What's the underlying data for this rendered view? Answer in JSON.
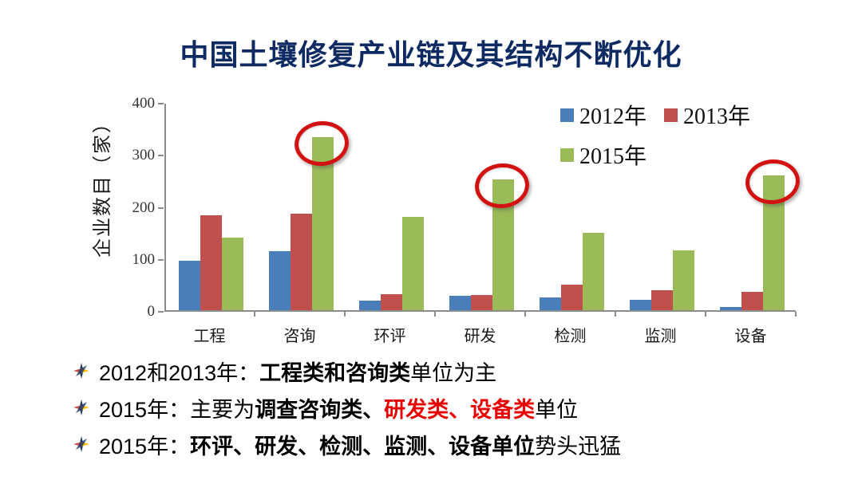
{
  "title": "中国土壤修复产业链及其结构不断优化",
  "colors": {
    "title": "#0e2a63",
    "axis": "#8c8c8c",
    "tick_label": "#333333",
    "highlight_red": "#e80000",
    "circle_red": "#d21210"
  },
  "chart_data": {
    "type": "bar",
    "title": "",
    "xlabel": "",
    "ylabel": "企业数目（家）",
    "ylim": [
      0,
      400
    ],
    "yticks": [
      0,
      100,
      200,
      300,
      400
    ],
    "grid": false,
    "legend_position": "top-right",
    "categories": [
      "工程",
      "咨询",
      "环评",
      "研发",
      "检测",
      "监测",
      "设备"
    ],
    "series": [
      {
        "name": "2012年",
        "color": "#4a7eba",
        "values": [
          95,
          114,
          18,
          28,
          24,
          20,
          6
        ]
      },
      {
        "name": "2013年",
        "color": "#c0504d",
        "values": [
          183,
          186,
          31,
          29,
          49,
          38,
          35
        ]
      },
      {
        "name": "2015年",
        "color": "#9bbb59",
        "values": [
          140,
          333,
          180,
          252,
          149,
          115,
          259
        ]
      }
    ],
    "annotations": {
      "circled_series": "2015年",
      "circled_categories": [
        "咨询",
        "研发",
        "设备"
      ],
      "circle_color": "#d21210"
    }
  },
  "bullets": [
    {
      "segments": [
        {
          "text": "2012和2013年：",
          "bold": false,
          "color": "#000000"
        },
        {
          "text": "工程类和咨询类",
          "bold": true,
          "color": "#000000"
        },
        {
          "text": "单位为主",
          "bold": false,
          "color": "#000000"
        }
      ]
    },
    {
      "segments": [
        {
          "text": "2015年：主要为",
          "bold": false,
          "color": "#000000"
        },
        {
          "text": "调查咨询类、",
          "bold": true,
          "color": "#000000"
        },
        {
          "text": "研发类、设备类",
          "bold": true,
          "color": "#e80000"
        },
        {
          "text": "单位",
          "bold": false,
          "color": "#000000"
        }
      ]
    },
    {
      "segments": [
        {
          "text": "2015年：",
          "bold": false,
          "color": "#000000"
        },
        {
          "text": "环评、研发、检测、监测、设备单位",
          "bold": true,
          "color": "#000000"
        },
        {
          "text": "势头迅猛",
          "bold": false,
          "color": "#000000"
        }
      ]
    }
  ]
}
